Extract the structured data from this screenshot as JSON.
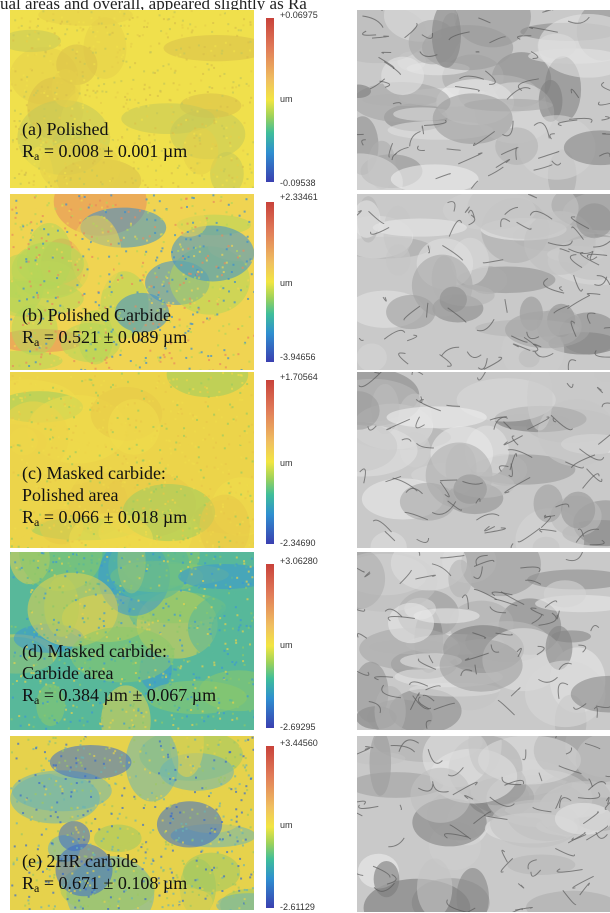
{
  "header_fragment": "ual areas and overall, appeared slightly as Ra",
  "panels": [
    {
      "caption_line1": "(a) Polished",
      "caption_line2": "",
      "ra_text": " = 0.008 ± 0.001 µm",
      "scale_max": "+0.06975",
      "scale_min": "-0.09538",
      "unit": "um",
      "map_colors": [
        "#e6cf4a",
        "#f0e04c",
        "#d9c04a",
        "#c4c85a"
      ]
    },
    {
      "caption_line1": "(b) Polished Carbide",
      "caption_line2": "",
      "ra_text": " = 0.521 ± 0.089 µm",
      "scale_max": "+2.33461",
      "scale_min": "-3.94656",
      "unit": "um",
      "map_colors": [
        "#e88a5c",
        "#f0d452",
        "#b4d65a",
        "#3a8fd0"
      ]
    },
    {
      "caption_line1": "(c) Masked carbide:",
      "caption_line2": "Polished area",
      "ra_text": " = 0.066 ± 0.018 µm",
      "scale_max": "+1.70564",
      "scale_min": "-2.34690",
      "unit": "um",
      "map_colors": [
        "#f0dc4c",
        "#ecd44a",
        "#e8c848",
        "#9ccc60"
      ]
    },
    {
      "caption_line1": "(d) Masked carbide:",
      "caption_line2": "Carbide area",
      "ra_text": " = 0.384 µm ± 0.067 µm",
      "scale_max": "+3.06280",
      "scale_min": "-2.69295",
      "unit": "um",
      "map_colors": [
        "#8cc86a",
        "#58b89a",
        "#e6d24c",
        "#3a98d4"
      ]
    },
    {
      "caption_line1": "(e) 2HR carbide",
      "caption_line2": "",
      "ra_text": " = 0.671 ± 0.108 µm",
      "scale_max": "+3.44560",
      "scale_min": "-2.61129",
      "unit": "um",
      "map_colors": [
        "#6ab4b4",
        "#e6d24c",
        "#3a6ccc",
        "#9cc864"
      ]
    }
  ]
}
